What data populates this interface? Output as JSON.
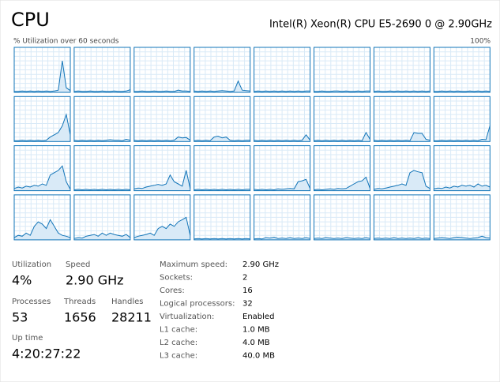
{
  "header": {
    "title": "CPU",
    "processor": "Intel(R) Xeon(R) CPU E5-2690 0 @ 2.90GHz"
  },
  "graph": {
    "caption": "% Utilization over 60 seconds",
    "max_label": "100%",
    "ylim": [
      0,
      100
    ],
    "color": "#1174b8",
    "fill": "#d9eaf7",
    "cells": [
      [
        2,
        2,
        3,
        2,
        3,
        2,
        3,
        2,
        3,
        2,
        3,
        5,
        70,
        10,
        4
      ],
      [
        2,
        3,
        2,
        2,
        3,
        2,
        2,
        3,
        2,
        2,
        3,
        2,
        2,
        3,
        6
      ],
      [
        2,
        2,
        3,
        2,
        2,
        3,
        2,
        2,
        3,
        2,
        2,
        5,
        3,
        3,
        2
      ],
      [
        3,
        2,
        3,
        2,
        3,
        2,
        3,
        4,
        3,
        2,
        3,
        25,
        5,
        4,
        3
      ],
      [
        2,
        3,
        2,
        3,
        2,
        3,
        2,
        3,
        2,
        3,
        2,
        3,
        2,
        3,
        3
      ],
      [
        2,
        2,
        3,
        2,
        2,
        3,
        3,
        2,
        3,
        2,
        2,
        3,
        2,
        3,
        3
      ],
      [
        2,
        3,
        2,
        2,
        3,
        2,
        3,
        2,
        3,
        2,
        3,
        2,
        3,
        2,
        3
      ],
      [
        2,
        2,
        3,
        2,
        3,
        2,
        3,
        2,
        2,
        3,
        2,
        3,
        2,
        3,
        2
      ],
      [
        2,
        2,
        3,
        2,
        3,
        2,
        3,
        2,
        3,
        10,
        15,
        20,
        35,
        60,
        15
      ],
      [
        3,
        2,
        3,
        2,
        3,
        2,
        3,
        2,
        3,
        4,
        3,
        3,
        2,
        5,
        3
      ],
      [
        3,
        2,
        3,
        2,
        3,
        2,
        3,
        2,
        3,
        2,
        3,
        10,
        8,
        9,
        3
      ],
      [
        2,
        3,
        2,
        3,
        2,
        10,
        12,
        8,
        10,
        3,
        2,
        3,
        2,
        3,
        3
      ],
      [
        3,
        2,
        3,
        2,
        3,
        2,
        3,
        2,
        3,
        2,
        3,
        2,
        3,
        15,
        3
      ],
      [
        2,
        3,
        2,
        3,
        2,
        3,
        2,
        3,
        2,
        3,
        2,
        3,
        2,
        20,
        5
      ],
      [
        3,
        2,
        3,
        2,
        3,
        2,
        3,
        2,
        3,
        2,
        20,
        18,
        18,
        5,
        3
      ],
      [
        2,
        2,
        3,
        2,
        3,
        2,
        3,
        2,
        3,
        2,
        3,
        2,
        5,
        4,
        35
      ],
      [
        5,
        8,
        6,
        10,
        8,
        12,
        10,
        15,
        12,
        35,
        40,
        45,
        55,
        20,
        3
      ],
      [
        2,
        3,
        2,
        3,
        2,
        3,
        2,
        3,
        2,
        3,
        2,
        3,
        2,
        3,
        2
      ],
      [
        4,
        6,
        5,
        8,
        10,
        12,
        14,
        12,
        15,
        35,
        20,
        15,
        10,
        45,
        5
      ],
      [
        2,
        3,
        2,
        3,
        2,
        3,
        2,
        3,
        2,
        3,
        2,
        3,
        2,
        3,
        3
      ],
      [
        3,
        2,
        3,
        2,
        3,
        2,
        4,
        3,
        4,
        5,
        4,
        20,
        22,
        25,
        5
      ],
      [
        2,
        3,
        2,
        3,
        4,
        3,
        5,
        4,
        5,
        10,
        15,
        20,
        22,
        30,
        5
      ],
      [
        3,
        5,
        4,
        6,
        8,
        10,
        12,
        15,
        12,
        40,
        45,
        42,
        40,
        10,
        5
      ],
      [
        4,
        6,
        5,
        8,
        6,
        10,
        8,
        12,
        10,
        12,
        8,
        15,
        10,
        12,
        8
      ],
      [
        5,
        10,
        8,
        15,
        10,
        30,
        40,
        35,
        25,
        45,
        30,
        15,
        10,
        8,
        5
      ],
      [
        3,
        5,
        4,
        8,
        10,
        12,
        8,
        15,
        10,
        15,
        12,
        10,
        8,
        12,
        5
      ],
      [
        5,
        8,
        10,
        12,
        15,
        10,
        25,
        30,
        25,
        35,
        30,
        40,
        45,
        50,
        10
      ],
      [
        2,
        3,
        2,
        3,
        2,
        3,
        2,
        3,
        2,
        3,
        2,
        3,
        2,
        3,
        2
      ],
      [
        2,
        3,
        2,
        5,
        4,
        6,
        3,
        4,
        3,
        5,
        3,
        4,
        3,
        5,
        3
      ],
      [
        3,
        4,
        3,
        5,
        4,
        3,
        4,
        3,
        5,
        4,
        3,
        4,
        3,
        5,
        3
      ],
      [
        3,
        4,
        3,
        4,
        3,
        5,
        3,
        4,
        3,
        4,
        3,
        5,
        3,
        4,
        3
      ],
      [
        3,
        4,
        5,
        4,
        3,
        5,
        6,
        5,
        4,
        3,
        4,
        5,
        8,
        5,
        4
      ]
    ]
  },
  "stats": [
    {
      "label": "Utilization",
      "value": "4%"
    },
    {
      "label": "Speed",
      "value": "2.90 GHz"
    },
    {
      "label": "Processes",
      "value": "53"
    },
    {
      "label": "Threads",
      "value": "1656"
    },
    {
      "label": "Handles",
      "value": "28211"
    },
    {
      "label": "Up time",
      "value": "4:20:27:22"
    }
  ],
  "specs": [
    {
      "label": "Maximum speed:",
      "value": "2.90 GHz"
    },
    {
      "label": "Sockets:",
      "value": "2"
    },
    {
      "label": "Cores:",
      "value": "16"
    },
    {
      "label": "Logical processors:",
      "value": "32"
    },
    {
      "label": "Virtualization:",
      "value": "Enabled"
    },
    {
      "label": "L1 cache:",
      "value": "1.0 MB"
    },
    {
      "label": "L2 cache:",
      "value": "4.0 MB"
    },
    {
      "label": "L3 cache:",
      "value": "40.0 MB"
    }
  ]
}
